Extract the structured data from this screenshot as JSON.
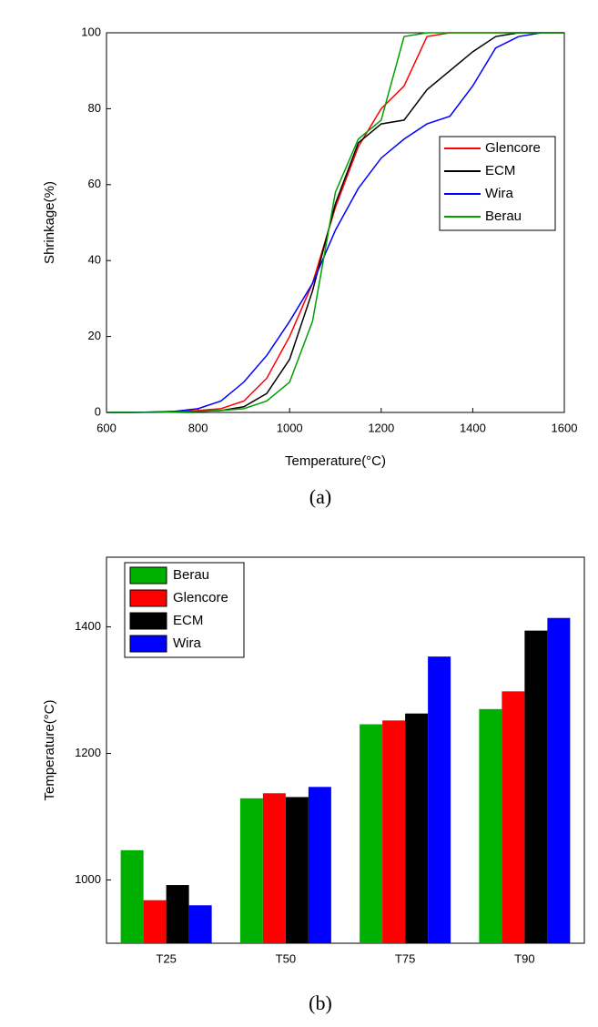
{
  "chart_data": [
    {
      "type": "line",
      "caption": "(a)",
      "x_label": "Temperature(°C)",
      "y_label": "Shrinkage(%)",
      "x": [
        600,
        650,
        700,
        750,
        800,
        850,
        900,
        950,
        1000,
        1050,
        1100,
        1150,
        1200,
        1250,
        1300,
        1350,
        1400,
        1450,
        1500,
        1550,
        1600
      ],
      "series": [
        {
          "name": "Glencore",
          "color": "#ff0000",
          "values": [
            0,
            0,
            0.1,
            0.2,
            0.5,
            1,
            3,
            9,
            20,
            34,
            54,
            70,
            80,
            86,
            99,
            100,
            100,
            100,
            100,
            100,
            100
          ]
        },
        {
          "name": "ECM",
          "color": "#000000",
          "values": [
            0,
            0,
            0.1,
            0.2,
            0.3,
            0.5,
            1.5,
            5,
            14,
            32,
            55,
            71,
            76,
            77,
            85,
            90,
            95,
            99,
            100,
            100,
            100
          ]
        },
        {
          "name": "Wira",
          "color": "#0000ff",
          "values": [
            0,
            0,
            0.1,
            0.3,
            1,
            3,
            8,
            15,
            24,
            34,
            48,
            59,
            67,
            72,
            76,
            78,
            86,
            96,
            99,
            100,
            null
          ]
        },
        {
          "name": "Berau",
          "color": "#00a000",
          "values": [
            0,
            0,
            0,
            0.1,
            0.3,
            0.5,
            1,
            3,
            8,
            24,
            58,
            72,
            77,
            99,
            100,
            100,
            100,
            100,
            100,
            100,
            100
          ]
        }
      ],
      "xlim": [
        600,
        1600
      ],
      "xticks": [
        600,
        800,
        1000,
        1200,
        1400,
        1600
      ],
      "ylim": [
        0,
        100
      ],
      "yticks": [
        0,
        20,
        40,
        60,
        80,
        100
      ],
      "legend": "right"
    },
    {
      "type": "bar",
      "caption": "(b)",
      "y_label": "Temperature(°C)",
      "categories": [
        "T25",
        "T50",
        "T75",
        "T90"
      ],
      "series": [
        {
          "name": "Berau",
          "color": "#00b000",
          "values": [
            1047,
            1129,
            1246,
            1270
          ]
        },
        {
          "name": "Glencore",
          "color": "#ff0000",
          "values": [
            968,
            1137,
            1252,
            1298
          ]
        },
        {
          "name": "ECM",
          "color": "#000000",
          "values": [
            992,
            1131,
            1263,
            1394
          ]
        },
        {
          "name": "Wira",
          "color": "#0000ff",
          "values": [
            960,
            1147,
            1353,
            1414
          ]
        }
      ],
      "ylim": [
        900,
        1510
      ],
      "yticks": [
        1000,
        1200,
        1400
      ],
      "legend": "upper left"
    }
  ]
}
